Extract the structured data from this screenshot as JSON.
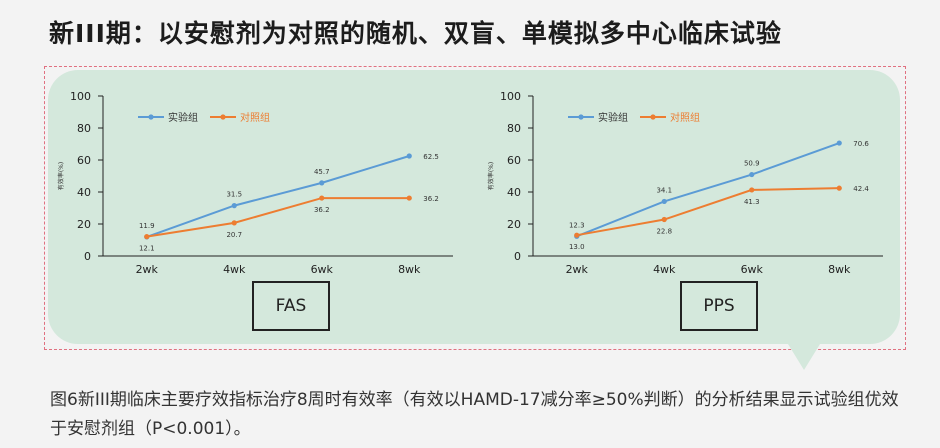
{
  "page_title": "新III期：以安慰剂为对照的随机、双盲、单模拟多中心临床试验",
  "caption": "图6新III期临床主要疗效指标治疗8周时有效率（有效以HAMD-17减分率≥50%判断）的分析结果显示试验组优效于安慰剂组（P<0.001）。",
  "colors": {
    "experimental": "#5b9bd5",
    "control": "#ed7d31"
  },
  "chart_data": [
    {
      "type": "line",
      "box_label": "FAS",
      "ylabel": "有效率(%)",
      "categories": [
        "2wk",
        "4wk",
        "6wk",
        "8wk"
      ],
      "ylim": [
        0,
        100
      ],
      "yticks": [
        0,
        20,
        40,
        60,
        80,
        100
      ],
      "grid": false,
      "legend": "top-left",
      "series": [
        {
          "name": "实验组",
          "values": [
            11.9,
            31.5,
            45.7,
            62.5
          ]
        },
        {
          "name": "对照组",
          "values": [
            12.1,
            20.7,
            36.2,
            36.2
          ]
        }
      ]
    },
    {
      "type": "line",
      "box_label": "PPS",
      "ylabel": "有效率(%)",
      "categories": [
        "2wk",
        "4wk",
        "6wk",
        "8wk"
      ],
      "ylim": [
        0,
        100
      ],
      "yticks": [
        0,
        20,
        40,
        60,
        80,
        100
      ],
      "grid": false,
      "legend": "top-left",
      "series": [
        {
          "name": "实验组",
          "values": [
            12.3,
            34.1,
            50.9,
            70.6
          ]
        },
        {
          "name": "对照组",
          "values": [
            13.0,
            22.8,
            41.3,
            42.4
          ]
        }
      ]
    }
  ]
}
